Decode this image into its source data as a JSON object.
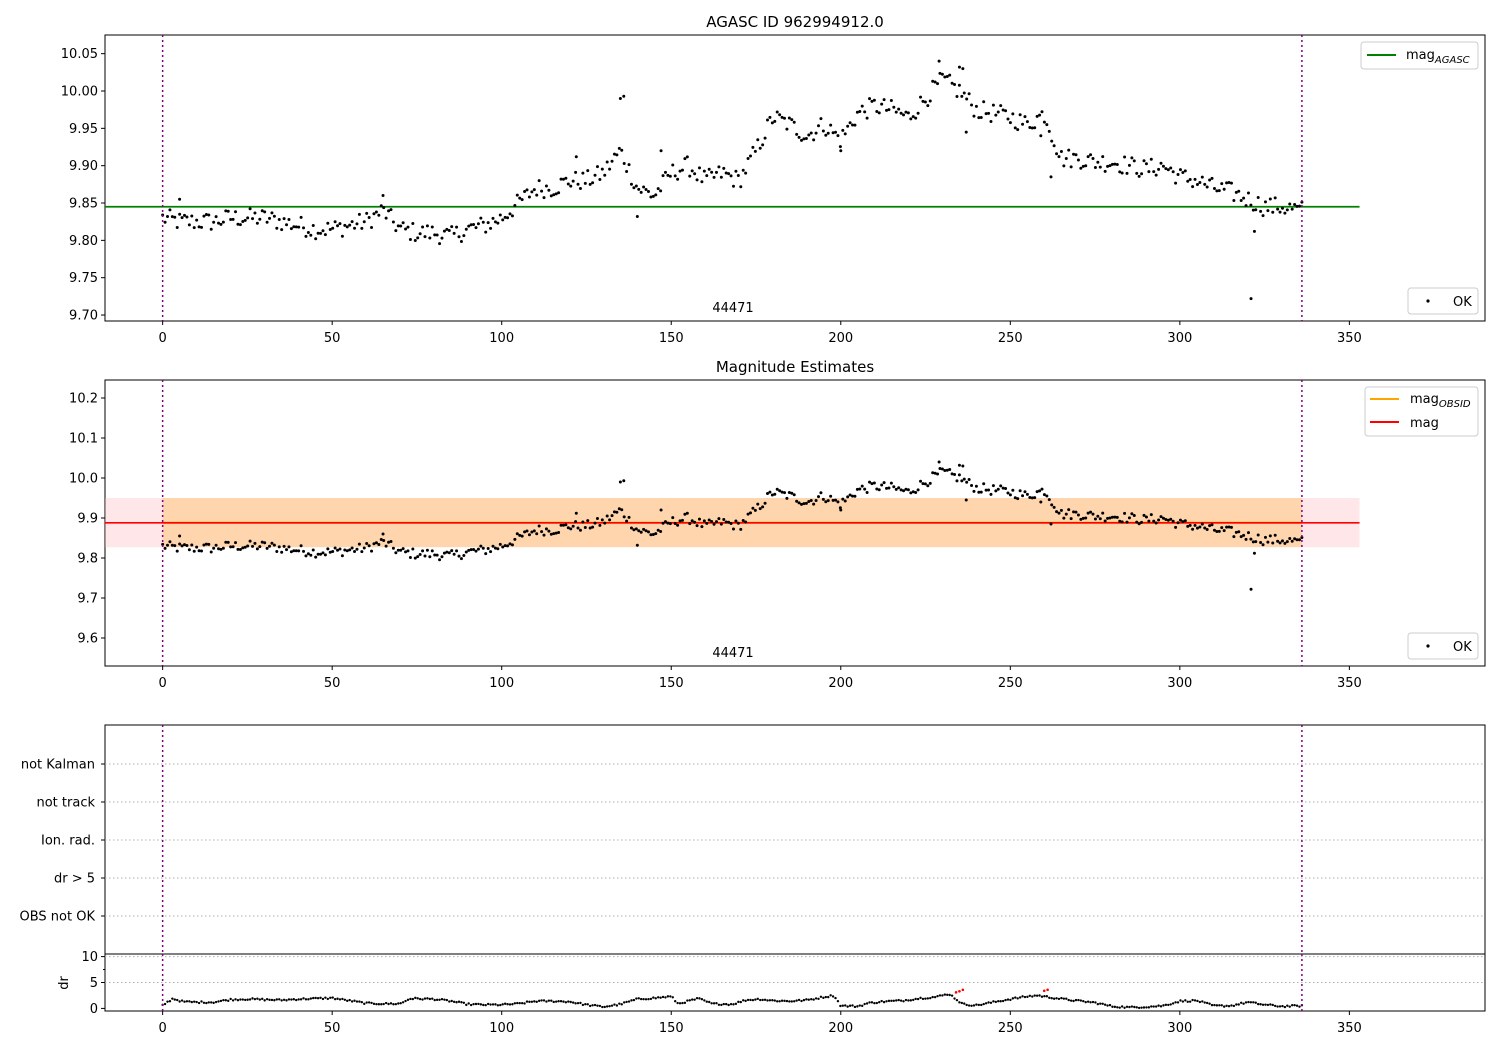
{
  "chart_data": [
    {
      "type": "scatter",
      "title": "AGASC ID 962994912.0",
      "xlabel": "",
      "ylabel": "",
      "xlim": [
        -17,
        390
      ],
      "ylim": [
        9.692,
        10.075
      ],
      "xticks": [
        0,
        50,
        100,
        150,
        200,
        250,
        300,
        350
      ],
      "yticks": [
        9.7,
        9.75,
        9.8,
        9.85,
        9.9,
        9.95,
        10.0,
        10.05
      ],
      "ytick_labels": [
        "9.70",
        "9.75",
        "9.80",
        "9.85",
        "9.90",
        "9.95",
        "10.00",
        "10.05"
      ],
      "obs_bounds": [
        0,
        336
      ],
      "obs_label": "44471",
      "reference_line": {
        "name": "mag",
        "subscript": "AGASC",
        "value": 9.845,
        "x_range": [
          -17,
          353
        ],
        "color": "#008000"
      },
      "points_legend": "OK",
      "anchors": [
        [
          0,
          9.83
        ],
        [
          5,
          9.825
        ],
        [
          10,
          9.825
        ],
        [
          15,
          9.825
        ],
        [
          20,
          9.83
        ],
        [
          25,
          9.83
        ],
        [
          30,
          9.83
        ],
        [
          35,
          9.825
        ],
        [
          40,
          9.82
        ],
        [
          45,
          9.815
        ],
        [
          50,
          9.815
        ],
        [
          55,
          9.82
        ],
        [
          60,
          9.825
        ],
        [
          65,
          9.84
        ],
        [
          70,
          9.815
        ],
        [
          75,
          9.81
        ],
        [
          80,
          9.81
        ],
        [
          85,
          9.805
        ],
        [
          90,
          9.815
        ],
        [
          95,
          9.82
        ],
        [
          100,
          9.83
        ],
        [
          105,
          9.85
        ],
        [
          110,
          9.87
        ],
        [
          115,
          9.87
        ],
        [
          120,
          9.88
        ],
        [
          125,
          9.88
        ],
        [
          130,
          9.89
        ],
        [
          135,
          9.92
        ],
        [
          140,
          9.87
        ],
        [
          145,
          9.86
        ],
        [
          150,
          9.89
        ],
        [
          155,
          9.9
        ],
        [
          160,
          9.88
        ],
        [
          165,
          9.89
        ],
        [
          170,
          9.88
        ],
        [
          175,
          9.92
        ],
        [
          180,
          9.965
        ],
        [
          185,
          9.955
        ],
        [
          190,
          9.94
        ],
        [
          195,
          9.955
        ],
        [
          200,
          9.935
        ],
        [
          205,
          9.97
        ],
        [
          210,
          9.98
        ],
        [
          215,
          9.975
        ],
        [
          220,
          9.965
        ],
        [
          225,
          9.99
        ],
        [
          230,
          10.015
        ],
        [
          235,
          10.0
        ],
        [
          240,
          9.975
        ],
        [
          245,
          9.97
        ],
        [
          250,
          9.965
        ],
        [
          255,
          9.955
        ],
        [
          260,
          9.97
        ],
        [
          265,
          9.91
        ],
        [
          270,
          9.91
        ],
        [
          275,
          9.905
        ],
        [
          280,
          9.905
        ],
        [
          285,
          9.9
        ],
        [
          290,
          9.895
        ],
        [
          295,
          9.9
        ],
        [
          300,
          9.885
        ],
        [
          305,
          9.88
        ],
        [
          310,
          9.87
        ],
        [
          315,
          9.865
        ],
        [
          320,
          9.855
        ],
        [
          325,
          9.845
        ],
        [
          330,
          9.845
        ],
        [
          336,
          9.84
        ]
      ],
      "spikes": [
        [
          5,
          9.855
        ],
        [
          65,
          9.86
        ],
        [
          122,
          9.912
        ],
        [
          135,
          9.99
        ],
        [
          136,
          9.993
        ],
        [
          140,
          9.832
        ],
        [
          147,
          9.92
        ],
        [
          200,
          9.92
        ],
        [
          229,
          10.04
        ],
        [
          235,
          10.032
        ],
        [
          236,
          10.03
        ],
        [
          237,
          9.945
        ],
        [
          259,
          9.94
        ],
        [
          262,
          9.885
        ],
        [
          321,
          9.722
        ],
        [
          322,
          9.812
        ]
      ]
    },
    {
      "type": "scatter",
      "title": "Magnitude Estimates",
      "xlabel": "",
      "ylabel": "",
      "xlim": [
        -17,
        390
      ],
      "ylim": [
        9.53,
        10.245
      ],
      "xticks": [
        0,
        50,
        100,
        150,
        200,
        250,
        300,
        350
      ],
      "yticks": [
        9.6,
        9.7,
        9.8,
        9.9,
        10.0,
        10.1,
        10.2
      ],
      "ytick_labels": [
        "9.6",
        "9.7",
        "9.8",
        "9.9",
        "10.0",
        "10.1",
        "10.2"
      ],
      "obs_bounds": [
        0,
        336
      ],
      "obs_label": "44471",
      "mag_line": {
        "name": "mag",
        "value": 9.888,
        "x_range": [
          -17,
          353
        ],
        "color": "#ff0000"
      },
      "mag_band": {
        "low": 9.827,
        "high": 9.95,
        "color": "#ffb6c1"
      },
      "obsid_line": {
        "name": "mag",
        "subscript": "OBSID",
        "value": 9.888,
        "x_range": [
          0,
          336
        ],
        "color": "#ffa500"
      },
      "points_legend": "OK"
    },
    {
      "type": "flags",
      "xlim": [
        -17,
        390
      ],
      "categories": [
        "OBS not OK",
        "dr > 5",
        "Ion. rad.",
        "not track",
        "not Kalman"
      ],
      "flag_points": [],
      "obs_bounds": [
        0,
        336
      ]
    },
    {
      "type": "scatter",
      "xlabel": "",
      "ylabel": "dr",
      "xlim": [
        -17,
        390
      ],
      "ylim": [
        -0.5,
        10.5
      ],
      "xticks": [
        0,
        50,
        100,
        150,
        200,
        250,
        300,
        350
      ],
      "yticks": [
        0,
        5,
        10
      ],
      "ytick_labels": [
        "0",
        "5",
        "10"
      ],
      "threshold": 5,
      "obs_bounds": [
        0,
        336
      ],
      "anchors": [
        [
          0,
          0.6
        ],
        [
          3,
          1.9
        ],
        [
          6,
          1.3
        ],
        [
          10,
          1.2
        ],
        [
          15,
          1.2
        ],
        [
          20,
          1.7
        ],
        [
          25,
          1.8
        ],
        [
          30,
          1.7
        ],
        [
          35,
          1.6
        ],
        [
          40,
          1.8
        ],
        [
          45,
          1.9
        ],
        [
          50,
          2.0
        ],
        [
          55,
          1.5
        ],
        [
          60,
          1.0
        ],
        [
          65,
          0.9
        ],
        [
          70,
          0.9
        ],
        [
          73,
          1.9
        ],
        [
          80,
          1.8
        ],
        [
          85,
          1.4
        ],
        [
          90,
          0.8
        ],
        [
          95,
          0.7
        ],
        [
          100,
          0.7
        ],
        [
          105,
          0.9
        ],
        [
          110,
          1.4
        ],
        [
          115,
          1.4
        ],
        [
          120,
          1.3
        ],
        [
          125,
          0.7
        ],
        [
          130,
          0.3
        ],
        [
          135,
          0.8
        ],
        [
          140,
          1.8
        ],
        [
          145,
          2.0
        ],
        [
          150,
          2.3
        ],
        [
          152,
          0.9
        ],
        [
          158,
          1.9
        ],
        [
          162,
          0.9
        ],
        [
          168,
          0.8
        ],
        [
          172,
          1.6
        ],
        [
          176,
          1.8
        ],
        [
          180,
          1.5
        ],
        [
          185,
          1.4
        ],
        [
          190,
          1.6
        ],
        [
          195,
          2.2
        ],
        [
          198,
          2.5
        ],
        [
          200,
          0.5
        ],
        [
          205,
          0.4
        ],
        [
          208,
          1.0
        ],
        [
          212,
          1.3
        ],
        [
          218,
          1.5
        ],
        [
          224,
          2.0
        ],
        [
          228,
          2.2
        ],
        [
          232,
          2.8
        ],
        [
          236,
          0.8
        ],
        [
          240,
          0.6
        ],
        [
          245,
          1.2
        ],
        [
          250,
          1.8
        ],
        [
          255,
          2.3
        ],
        [
          258,
          2.5
        ],
        [
          262,
          2.1
        ],
        [
          268,
          1.6
        ],
        [
          275,
          1.1
        ],
        [
          280,
          0.4
        ],
        [
          285,
          0.2
        ],
        [
          290,
          0.3
        ],
        [
          295,
          0.5
        ],
        [
          300,
          1.4
        ],
        [
          305,
          1.5
        ],
        [
          310,
          0.5
        ],
        [
          315,
          0.5
        ],
        [
          320,
          1.2
        ],
        [
          325,
          0.7
        ],
        [
          330,
          0.4
        ],
        [
          336,
          0.5
        ]
      ],
      "highlighted": [
        [
          234,
          3.1
        ],
        [
          235,
          3.3
        ],
        [
          236,
          3.6
        ],
        [
          260,
          3.4
        ],
        [
          261,
          3.6
        ]
      ]
    }
  ]
}
